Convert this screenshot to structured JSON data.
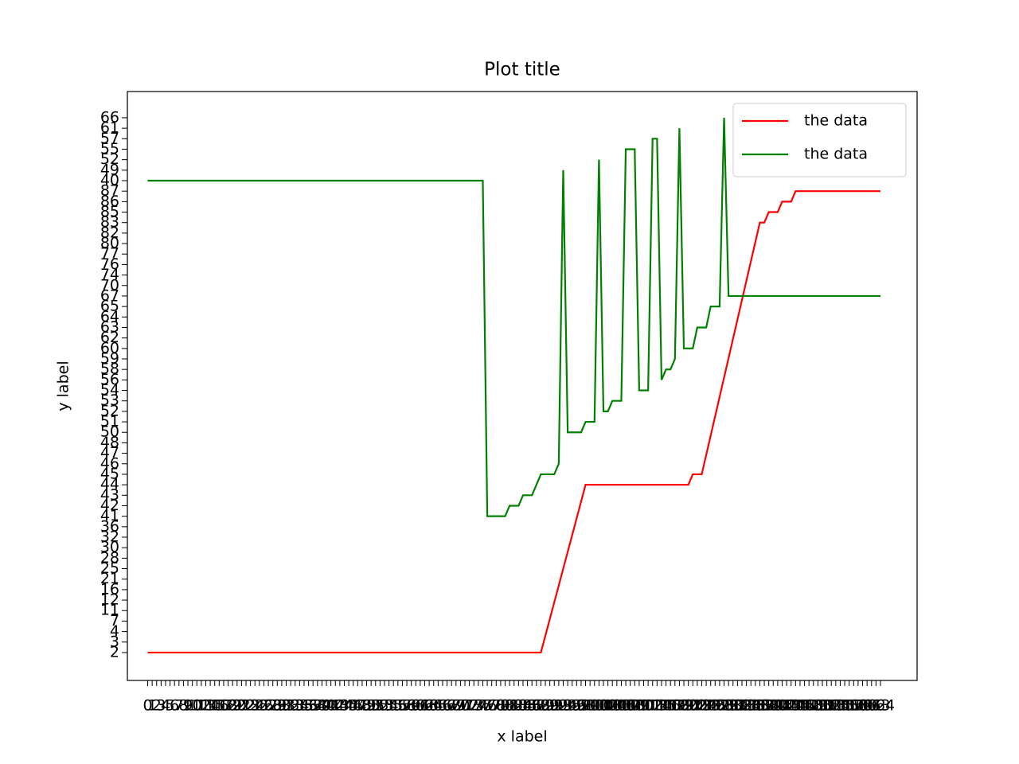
{
  "chart_data": {
    "type": "line",
    "title": "Plot title",
    "xlabel": "x label",
    "ylabel": "y label",
    "xlim": [
      -4.55,
      172.2
    ],
    "ylim": [
      -2.66,
      53.5
    ],
    "legend": "upper right",
    "grid": false,
    "xticks": [
      0,
      1,
      2,
      3,
      4,
      5,
      6,
      7,
      8,
      9,
      10,
      11,
      12,
      13,
      14,
      15,
      16,
      17,
      18,
      19,
      20,
      21,
      22,
      23,
      24,
      25,
      26,
      27,
      28,
      29,
      30,
      31,
      32,
      33,
      34,
      35,
      36,
      37,
      38,
      39,
      40,
      41,
      42,
      43,
      44,
      45,
      46,
      47,
      48,
      49,
      50,
      51,
      52,
      53,
      54,
      55,
      56,
      57,
      58,
      59,
      60,
      61,
      62,
      63,
      64,
      65,
      66,
      67,
      68,
      69,
      70,
      71,
      72,
      73,
      74,
      75,
      76,
      77,
      78,
      79,
      80,
      81,
      82,
      83,
      84,
      85,
      86,
      87,
      88,
      89,
      90,
      91,
      92,
      93,
      94,
      95,
      96,
      97,
      98,
      99,
      100,
      101,
      102,
      103,
      104,
      105,
      106,
      107,
      108,
      109,
      110,
      111,
      112,
      113,
      114,
      115,
      116,
      117,
      118,
      119,
      120,
      121,
      122,
      123,
      124,
      125,
      126,
      127,
      128,
      129,
      130,
      131,
      132,
      133,
      134,
      135,
      136,
      137,
      138,
      139,
      140,
      141,
      142,
      143,
      144,
      145,
      146,
      147,
      148,
      149,
      150,
      151,
      152,
      153,
      154,
      155,
      156,
      157,
      158,
      159,
      160,
      161,
      162,
      163,
      164
    ],
    "yticks": [
      {
        "value": 0,
        "label": "2"
      },
      {
        "value": 1,
        "label": "3"
      },
      {
        "value": 2,
        "label": "4"
      },
      {
        "value": 3,
        "label": "7"
      },
      {
        "value": 4,
        "label": "11"
      },
      {
        "value": 5,
        "label": "12"
      },
      {
        "value": 6,
        "label": "16"
      },
      {
        "value": 7,
        "label": "21"
      },
      {
        "value": 8,
        "label": "25"
      },
      {
        "value": 9,
        "label": "28"
      },
      {
        "value": 10,
        "label": "30"
      },
      {
        "value": 11,
        "label": "32"
      },
      {
        "value": 12,
        "label": "36"
      },
      {
        "value": 13,
        "label": "41"
      },
      {
        "value": 14,
        "label": "42"
      },
      {
        "value": 15,
        "label": "43"
      },
      {
        "value": 16,
        "label": "44"
      },
      {
        "value": 17,
        "label": "45"
      },
      {
        "value": 18,
        "label": "46"
      },
      {
        "value": 19,
        "label": "47"
      },
      {
        "value": 20,
        "label": "48"
      },
      {
        "value": 21,
        "label": "50"
      },
      {
        "value": 22,
        "label": "51"
      },
      {
        "value": 23,
        "label": "52"
      },
      {
        "value": 24,
        "label": "53"
      },
      {
        "value": 25,
        "label": "54"
      },
      {
        "value": 26,
        "label": "56"
      },
      {
        "value": 27,
        "label": "58"
      },
      {
        "value": 28,
        "label": "59"
      },
      {
        "value": 29,
        "label": "60"
      },
      {
        "value": 30,
        "label": "62"
      },
      {
        "value": 31,
        "label": "63"
      },
      {
        "value": 32,
        "label": "64"
      },
      {
        "value": 33,
        "label": "65"
      },
      {
        "value": 34,
        "label": "67"
      },
      {
        "value": 35,
        "label": "70"
      },
      {
        "value": 36,
        "label": "74"
      },
      {
        "value": 37,
        "label": "76"
      },
      {
        "value": 38,
        "label": "77"
      },
      {
        "value": 39,
        "label": "80"
      },
      {
        "value": 40,
        "label": "82"
      },
      {
        "value": 41,
        "label": "83"
      },
      {
        "value": 42,
        "label": "85"
      },
      {
        "value": 43,
        "label": "86"
      },
      {
        "value": 44,
        "label": "87"
      },
      {
        "value": 45,
        "label": "40"
      },
      {
        "value": 46,
        "label": "49"
      },
      {
        "value": 47,
        "label": "52"
      },
      {
        "value": 48,
        "label": "55"
      },
      {
        "value": 49,
        "label": "57"
      },
      {
        "value": 50,
        "label": "61"
      },
      {
        "value": 51,
        "label": "66"
      }
    ],
    "series": [
      {
        "name": "the data",
        "color": "#ff0000",
        "x": [
          0,
          88,
          98,
          121,
          122,
          124,
          137,
          138,
          139,
          141,
          142,
          144,
          145,
          164
        ],
        "values": [
          0,
          0,
          16,
          16,
          17,
          17,
          41,
          41,
          42,
          42,
          43,
          43,
          44,
          44
        ]
      },
      {
        "name": "the data",
        "color": "#008000",
        "x": [
          0,
          75,
          76,
          80,
          81,
          83,
          84,
          86,
          87,
          88,
          91,
          92,
          93,
          94,
          97,
          98,
          100,
          101,
          102,
          103,
          104,
          106,
          107,
          109,
          110,
          112,
          113,
          114,
          115,
          116,
          117,
          118,
          119,
          120,
          122,
          123,
          125,
          126,
          128,
          129,
          130,
          164
        ],
        "values": [
          45,
          45,
          13,
          13,
          14,
          14,
          15,
          15,
          16,
          17,
          17,
          18,
          46,
          21,
          21,
          22,
          22,
          47,
          23,
          23,
          24,
          24,
          48,
          48,
          25,
          25,
          49,
          49,
          26,
          27,
          27,
          28,
          50,
          29,
          29,
          31,
          31,
          33,
          33,
          51,
          34,
          34
        ]
      }
    ]
  }
}
